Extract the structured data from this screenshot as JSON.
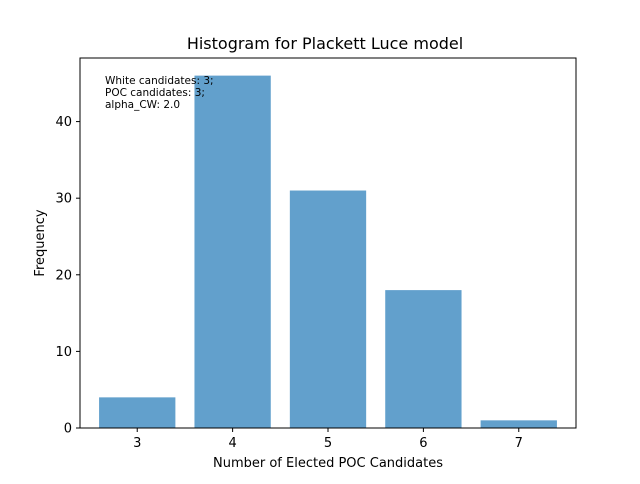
{
  "chart_data": {
    "type": "bar",
    "title": "Histogram for Plackett Luce model",
    "xlabel": "Number of Elected POC Candidates",
    "ylabel": "Frequency",
    "categories": [
      "3",
      "4",
      "5",
      "6",
      "7"
    ],
    "values": [
      4,
      46,
      31,
      18,
      1
    ],
    "ylim": [
      0,
      48.3
    ],
    "xlim": [
      2.4,
      7.6
    ],
    "yticks": [
      "0",
      "10",
      "20",
      "30",
      "40"
    ],
    "bar_color": "#62a0cc",
    "annotation": [
      "White candidates: 3;",
      "POC candidates: 3;",
      "alpha_CW: 2.0"
    ],
    "grid": false,
    "legend": "none"
  }
}
